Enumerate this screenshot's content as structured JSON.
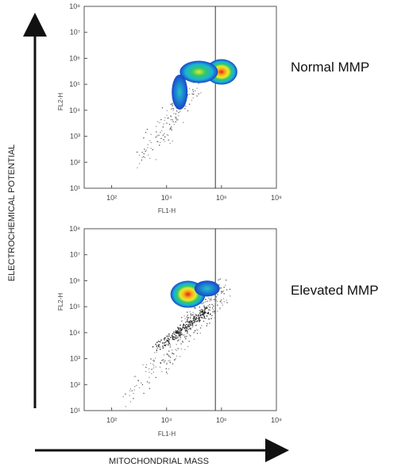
{
  "figure": {
    "y_axis_title": "ELECTROCHEMICAL POTENTIAL",
    "x_axis_title": "MITOCHONDRIAL MASS"
  },
  "chart_data": [
    {
      "type": "heatmap",
      "annotation": "Normal MMP",
      "xlabel": "FL1-H",
      "ylabel": "FL2-H",
      "xscale": "log",
      "yscale": "log",
      "xlim": [
        10,
        100000000
      ],
      "ylim": [
        10,
        100000000
      ],
      "x_ticks": [
        "10²",
        "10⁴",
        "10⁶",
        "10⁸"
      ],
      "y_ticks": [
        "10¹",
        "10²",
        "10³",
        "10⁴",
        "10⁵",
        "10⁶",
        "10⁷",
        "10⁸"
      ],
      "gate_x": 600000,
      "density_peaks": [
        {
          "x": 1000000,
          "y": 300000,
          "level": "high"
        },
        {
          "x": 150000,
          "y": 300000,
          "level": "medium"
        }
      ],
      "scatter_tail": {
        "x": [
          1000,
          100000
        ],
        "y": [
          100,
          100000
        ]
      }
    },
    {
      "type": "heatmap",
      "annotation": "Elevated MMP",
      "xlabel": "FL1-H",
      "ylabel": "FL2-H",
      "xscale": "log",
      "yscale": "log",
      "xlim": [
        10,
        100000000
      ],
      "ylim": [
        10,
        100000000
      ],
      "x_ticks": [
        "10²",
        "10⁴",
        "10⁶",
        "10⁸"
      ],
      "y_ticks": [
        "10¹",
        "10²",
        "10³",
        "10⁴",
        "10⁵",
        "10⁶",
        "10⁷",
        "10⁸"
      ],
      "gate_x": 600000,
      "density_peaks": [
        {
          "x": 60000,
          "y": 300000,
          "level": "high"
        },
        {
          "x": 300000,
          "y": 500000,
          "level": "low"
        }
      ],
      "scatter_tail": {
        "x": [
          300,
          1000000
        ],
        "y": [
          20,
          500000
        ]
      }
    }
  ]
}
